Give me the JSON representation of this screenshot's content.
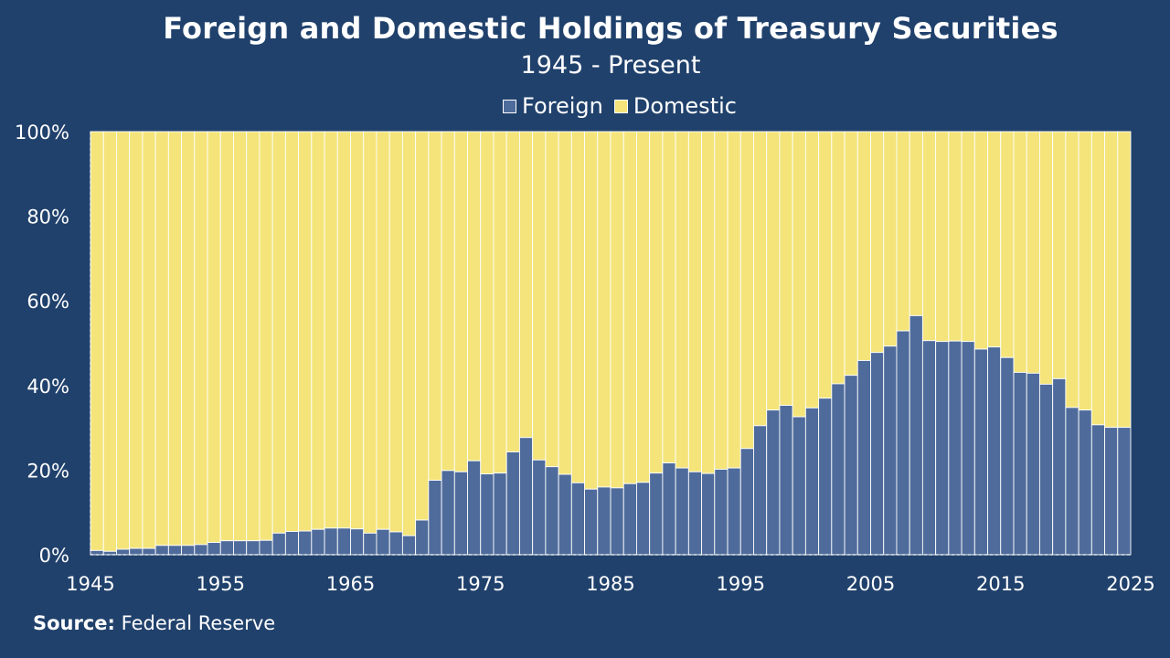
{
  "chart_data": {
    "type": "bar",
    "stacked": true,
    "title": "Foreign and Domestic Holdings of Treasury Securities",
    "subtitle": "1945 - Present",
    "x": [
      1945,
      1946,
      1947,
      1948,
      1949,
      1950,
      1951,
      1952,
      1953,
      1954,
      1955,
      1956,
      1957,
      1958,
      1959,
      1960,
      1961,
      1962,
      1963,
      1964,
      1965,
      1966,
      1967,
      1968,
      1969,
      1970,
      1971,
      1972,
      1973,
      1974,
      1975,
      1976,
      1977,
      1978,
      1979,
      1980,
      1981,
      1982,
      1983,
      1984,
      1985,
      1986,
      1987,
      1988,
      1989,
      1990,
      1991,
      1992,
      1993,
      1994,
      1995,
      1996,
      1997,
      1998,
      1999,
      2000,
      2001,
      2002,
      2003,
      2004,
      2005,
      2006,
      2007,
      2008,
      2009,
      2010,
      2011,
      2012,
      2013,
      2014,
      2015,
      2016,
      2017,
      2018,
      2019,
      2020,
      2021,
      2022,
      2023,
      2024
    ],
    "series": [
      {
        "name": "Foreign",
        "color": "#4e6b9b",
        "values": [
          1.0,
          0.8,
          1.3,
          1.5,
          1.5,
          2.2,
          2.2,
          2.2,
          2.4,
          2.9,
          3.3,
          3.3,
          3.3,
          3.4,
          5.1,
          5.5,
          5.6,
          6.0,
          6.3,
          6.3,
          6.1,
          5.1,
          6.0,
          5.4,
          4.5,
          8.2,
          17.6,
          19.9,
          19.6,
          22.2,
          19.1,
          19.3,
          24.3,
          27.7,
          22.4,
          20.8,
          19.0,
          17.0,
          15.5,
          16.0,
          15.8,
          16.8,
          17.1,
          19.3,
          21.7,
          20.5,
          19.6,
          19.2,
          20.2,
          20.5,
          25.1,
          30.5,
          34.2,
          35.3,
          32.6,
          34.7,
          37.0,
          40.4,
          42.4,
          45.9,
          47.8,
          49.3,
          52.9,
          56.5,
          50.6,
          50.4,
          50.5,
          50.4,
          48.6,
          49.1,
          46.6,
          43.1,
          42.9,
          40.3,
          41.6,
          34.8,
          34.2,
          30.7,
          30.1,
          30.1
        ]
      },
      {
        "name": "Domestic",
        "color": "#f4e479",
        "values": "complement"
      }
    ],
    "ylim": [
      0,
      100
    ],
    "xlim": [
      1945,
      2025
    ],
    "y_ticks": [
      "0%",
      "20%",
      "40%",
      "60%",
      "80%",
      "100%"
    ],
    "y_tick_values": [
      0,
      20,
      40,
      60,
      80,
      100
    ],
    "x_ticks": [
      "1945",
      "1955",
      "1965",
      "1975",
      "1985",
      "1995",
      "2005",
      "2015",
      "2025"
    ],
    "x_tick_values": [
      1945,
      1955,
      1965,
      1975,
      1985,
      1995,
      2005,
      2015,
      2025
    ],
    "legend": {
      "position": "top-center",
      "entries": [
        "Foreign",
        "Domestic"
      ]
    },
    "grid": false
  },
  "source": {
    "label": "Source:",
    "text": "Federal Reserve"
  },
  "colors": {
    "background": "#20416c",
    "foreign": "#4e6b9b",
    "domestic": "#f4e479",
    "separator": "#ffffff"
  }
}
